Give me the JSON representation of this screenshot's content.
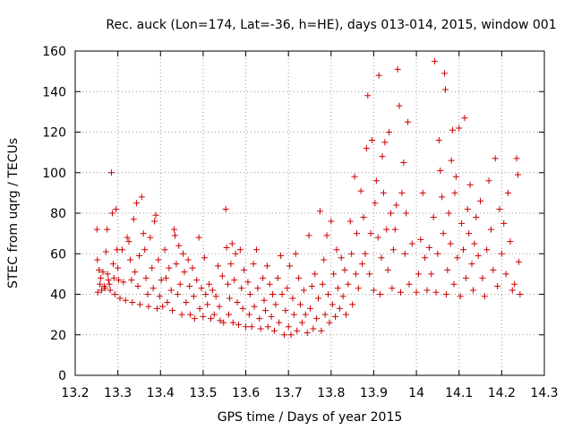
{
  "chart_data": {
    "type": "scatter",
    "title": "Rec. auck (Lon=174, Lat=-36, h=HE), days 013-014, 2015, window 001",
    "xlabel": "GPS time / Days of year 2015",
    "ylabel": "STEC from uqrg / TECUs",
    "xlim": [
      13.2,
      14.3
    ],
    "ylim": [
      0,
      160
    ],
    "xticks": [
      "13.2",
      "13.3",
      "13.4",
      "13.5",
      "13.6",
      "13.7",
      "13.8",
      "13.9",
      "14",
      "14.1",
      "14.2",
      "14.3"
    ],
    "yticks": [
      "0",
      "20",
      "40",
      "60",
      "80",
      "100",
      "120",
      "140",
      "160"
    ],
    "grid": true,
    "marker": "+",
    "color": "#cc0000",
    "series": [
      {
        "points": [
          [
            13.251,
            72
          ],
          [
            13.252,
            57
          ],
          [
            13.253,
            41
          ],
          [
            13.256,
            52
          ],
          [
            13.258,
            45
          ],
          [
            13.26,
            48
          ],
          [
            13.262,
            42
          ],
          [
            13.265,
            51
          ],
          [
            13.268,
            44
          ],
          [
            13.27,
            43
          ],
          [
            13.272,
            61
          ],
          [
            13.275,
            72
          ],
          [
            13.276,
            50
          ],
          [
            13.278,
            47
          ],
          [
            13.28,
            45
          ],
          [
            13.282,
            42
          ],
          [
            13.285,
            100
          ],
          [
            13.287,
            80
          ],
          [
            13.289,
            55
          ],
          [
            13.291,
            48
          ],
          [
            13.293,
            40
          ],
          [
            13.296,
            82
          ],
          [
            13.298,
            62
          ],
          [
            13.3,
            53
          ],
          [
            13.302,
            47
          ],
          [
            13.305,
            38
          ],
          [
            13.31,
            62
          ],
          [
            13.313,
            46
          ],
          [
            13.318,
            37
          ],
          [
            13.322,
            68
          ],
          [
            13.326,
            66
          ],
          [
            13.329,
            57
          ],
          [
            13.332,
            47
          ],
          [
            13.334,
            36
          ],
          [
            13.337,
            77
          ],
          [
            13.34,
            51
          ],
          [
            13.344,
            85
          ],
          [
            13.347,
            44
          ],
          [
            13.35,
            59
          ],
          [
            13.352,
            35
          ],
          [
            13.356,
            88
          ],
          [
            13.36,
            70
          ],
          [
            13.363,
            62
          ],
          [
            13.366,
            48
          ],
          [
            13.37,
            40
          ],
          [
            13.372,
            34
          ],
          [
            13.376,
            68
          ],
          [
            13.38,
            53
          ],
          [
            13.383,
            43
          ],
          [
            13.386,
            76
          ],
          [
            13.389,
            79
          ],
          [
            13.392,
            33
          ],
          [
            13.395,
            57
          ],
          [
            13.398,
            39
          ],
          [
            13.402,
            47
          ],
          [
            13.405,
            34
          ],
          [
            13.41,
            62
          ],
          [
            13.413,
            48
          ],
          [
            13.416,
            36
          ],
          [
            13.42,
            53
          ],
          [
            13.425,
            42
          ],
          [
            13.428,
            32
          ],
          [
            13.432,
            72
          ],
          [
            13.434,
            69
          ],
          [
            13.437,
            55
          ],
          [
            13.44,
            40
          ],
          [
            13.443,
            64
          ],
          [
            13.446,
            45
          ],
          [
            13.45,
            30
          ],
          [
            13.453,
            60
          ],
          [
            13.456,
            51
          ],
          [
            13.46,
            36
          ],
          [
            13.465,
            57
          ],
          [
            13.468,
            44
          ],
          [
            13.47,
            30
          ],
          [
            13.475,
            53
          ],
          [
            13.478,
            39
          ],
          [
            13.48,
            28
          ],
          [
            13.485,
            47
          ],
          [
            13.49,
            68
          ],
          [
            13.492,
            33
          ],
          [
            13.496,
            43
          ],
          [
            13.5,
            29
          ],
          [
            13.503,
            58
          ],
          [
            13.506,
            40
          ],
          [
            13.51,
            35
          ],
          [
            13.514,
            45
          ],
          [
            13.518,
            28
          ],
          [
            13.522,
            42
          ],
          [
            13.526,
            30
          ],
          [
            13.53,
            39
          ],
          [
            13.535,
            54
          ],
          [
            13.538,
            34
          ],
          [
            13.54,
            27
          ],
          [
            13.545,
            49
          ],
          [
            13.548,
            26
          ],
          [
            13.553,
            82
          ],
          [
            13.555,
            63
          ],
          [
            13.558,
            45
          ],
          [
            13.56,
            30
          ],
          [
            13.562,
            38
          ],
          [
            13.565,
            55
          ],
          [
            13.568,
            65
          ],
          [
            13.57,
            26
          ],
          [
            13.573,
            47
          ],
          [
            13.576,
            60
          ],
          [
            13.58,
            36
          ],
          [
            13.583,
            25
          ],
          [
            13.587,
            62
          ],
          [
            13.59,
            43
          ],
          [
            13.593,
            33
          ],
          [
            13.596,
            52
          ],
          [
            13.6,
            24
          ],
          [
            13.605,
            46
          ],
          [
            13.608,
            30
          ],
          [
            13.61,
            40
          ],
          [
            13.614,
            24
          ],
          [
            13.618,
            55
          ],
          [
            13.62,
            34
          ],
          [
            13.625,
            62
          ],
          [
            13.628,
            43
          ],
          [
            13.632,
            28
          ],
          [
            13.635,
            23
          ],
          [
            13.64,
            48
          ],
          [
            13.643,
            37
          ],
          [
            13.646,
            32
          ],
          [
            13.65,
            54
          ],
          [
            13.652,
            24
          ],
          [
            13.656,
            45
          ],
          [
            13.66,
            29
          ],
          [
            13.663,
            40
          ],
          [
            13.667,
            22
          ],
          [
            13.67,
            35
          ],
          [
            13.675,
            48
          ],
          [
            13.678,
            26
          ],
          [
            13.682,
            59
          ],
          [
            13.685,
            40
          ],
          [
            13.69,
            20
          ],
          [
            13.693,
            32
          ],
          [
            13.697,
            43
          ],
          [
            13.7,
            24
          ],
          [
            13.703,
            54
          ],
          [
            13.706,
            20
          ],
          [
            13.71,
            38
          ],
          [
            13.713,
            30
          ],
          [
            13.717,
            60
          ],
          [
            13.72,
            22
          ],
          [
            13.724,
            48
          ],
          [
            13.728,
            35
          ],
          [
            13.732,
            26
          ],
          [
            13.736,
            42
          ],
          [
            13.74,
            30
          ],
          [
            13.744,
            21
          ],
          [
            13.748,
            69
          ],
          [
            13.751,
            33
          ],
          [
            13.755,
            44
          ],
          [
            13.758,
            23
          ],
          [
            13.762,
            50
          ],
          [
            13.766,
            28
          ],
          [
            13.77,
            38
          ],
          [
            13.774,
            81
          ],
          [
            13.777,
            22
          ],
          [
            13.78,
            45
          ],
          [
            13.783,
            57
          ],
          [
            13.786,
            30
          ],
          [
            13.79,
            69
          ],
          [
            13.793,
            40
          ],
          [
            13.796,
            26
          ],
          [
            13.8,
            76
          ],
          [
            13.803,
            35
          ],
          [
            13.806,
            50
          ],
          [
            13.81,
            29
          ],
          [
            13.813,
            62
          ],
          [
            13.816,
            43
          ],
          [
            13.82,
            33
          ],
          [
            13.824,
            58
          ],
          [
            13.828,
            39
          ],
          [
            13.832,
            52
          ],
          [
            13.835,
            30
          ],
          [
            13.84,
            45
          ],
          [
            13.845,
            76
          ],
          [
            13.848,
            60
          ],
          [
            13.85,
            35
          ],
          [
            13.855,
            98
          ],
          [
            13.858,
            50
          ],
          [
            13.86,
            70
          ],
          [
            13.864,
            43
          ],
          [
            13.87,
            91
          ],
          [
            13.873,
            55
          ],
          [
            13.876,
            78
          ],
          [
            13.88,
            60
          ],
          [
            13.883,
            112
          ],
          [
            13.886,
            138
          ],
          [
            13.89,
            50
          ],
          [
            13.893,
            70
          ],
          [
            13.896,
            116
          ],
          [
            13.9,
            42
          ],
          [
            13.903,
            85
          ],
          [
            13.906,
            96
          ],
          [
            13.91,
            68
          ],
          [
            13.912,
            148
          ],
          [
            13.915,
            40
          ],
          [
            13.918,
            58
          ],
          [
            13.92,
            108
          ],
          [
            13.923,
            90
          ],
          [
            13.926,
            115
          ],
          [
            13.93,
            72
          ],
          [
            13.933,
            52
          ],
          [
            13.936,
            120
          ],
          [
            13.94,
            80
          ],
          [
            13.943,
            43
          ],
          [
            13.946,
            62
          ],
          [
            13.95,
            72
          ],
          [
            13.953,
            84
          ],
          [
            13.956,
            151
          ],
          [
            13.96,
            133
          ],
          [
            13.963,
            41
          ],
          [
            13.966,
            90
          ],
          [
            13.97,
            105
          ],
          [
            13.973,
            60
          ],
          [
            13.976,
            80
          ],
          [
            13.98,
            125
          ],
          [
            13.983,
            45
          ],
          [
            13.99,
            65
          ],
          [
            14,
            41
          ],
          [
            14.005,
            50
          ],
          [
            14.01,
            67
          ],
          [
            14.015,
            90
          ],
          [
            14.02,
            58
          ],
          [
            14.025,
            42
          ],
          [
            14.03,
            63
          ],
          [
            14.035,
            50
          ],
          [
            14.04,
            78
          ],
          [
            14.043,
            155
          ],
          [
            14.046,
            41
          ],
          [
            14.05,
            60
          ],
          [
            14.053,
            116
          ],
          [
            14.056,
            101
          ],
          [
            14.06,
            88
          ],
          [
            14.063,
            70
          ],
          [
            14.066,
            149
          ],
          [
            14.068,
            141
          ],
          [
            14.07,
            40
          ],
          [
            14.073,
            52
          ],
          [
            14.076,
            80
          ],
          [
            14.08,
            65
          ],
          [
            14.082,
            106
          ],
          [
            14.085,
            121
          ],
          [
            14.088,
            45
          ],
          [
            14.09,
            90
          ],
          [
            14.093,
            98
          ],
          [
            14.096,
            58
          ],
          [
            14.1,
            122
          ],
          [
            14.103,
            39
          ],
          [
            14.106,
            75
          ],
          [
            14.11,
            62
          ],
          [
            14.113,
            127
          ],
          [
            14.116,
            48
          ],
          [
            14.12,
            82
          ],
          [
            14.123,
            70
          ],
          [
            14.126,
            94
          ],
          [
            14.13,
            55
          ],
          [
            14.133,
            42
          ],
          [
            14.136,
            65
          ],
          [
            14.14,
            78
          ],
          [
            14.145,
            59
          ],
          [
            14.15,
            86
          ],
          [
            14.155,
            48
          ],
          [
            14.16,
            39
          ],
          [
            14.165,
            62
          ],
          [
            14.17,
            96
          ],
          [
            14.175,
            72
          ],
          [
            14.18,
            52
          ],
          [
            14.185,
            107
          ],
          [
            14.19,
            44
          ],
          [
            14.195,
            82
          ],
          [
            14.2,
            60
          ],
          [
            14.205,
            75
          ],
          [
            14.21,
            50
          ],
          [
            14.215,
            90
          ],
          [
            14.22,
            66
          ],
          [
            14.225,
            42
          ],
          [
            14.23,
            45
          ],
          [
            14.235,
            107
          ],
          [
            14.238,
            99
          ],
          [
            14.24,
            56
          ],
          [
            14.243,
            40
          ]
        ]
      }
    ]
  }
}
